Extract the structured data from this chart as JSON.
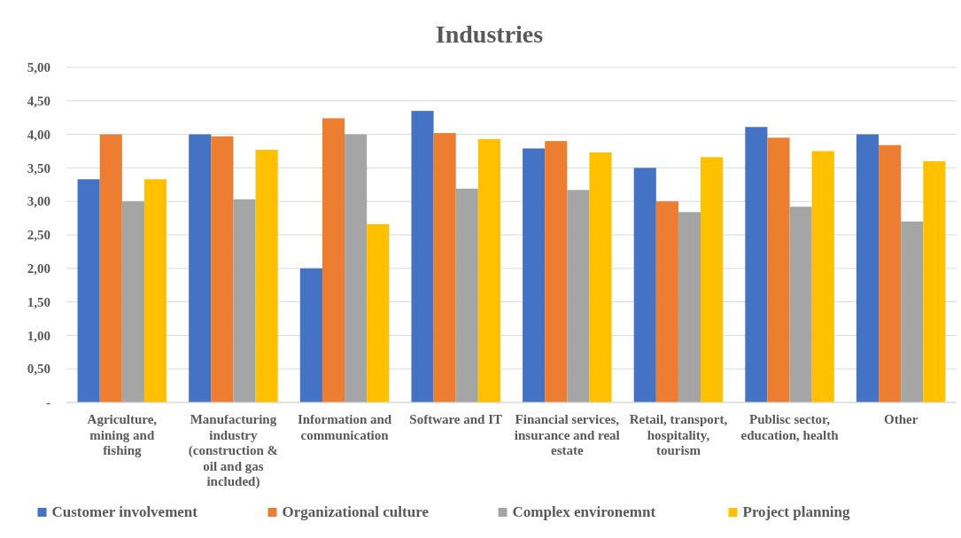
{
  "chart_data": {
    "type": "bar",
    "title": "Industries",
    "categories": [
      "Agriculture, mining and fishing",
      "Manufacturing industry (construction & oil and gas included)",
      "Information and communication",
      "Software and IT",
      "Financial services, insurance and real estate",
      "Retail, transport, hospitality, tourism",
      "Publisc sector, education, health",
      "Other"
    ],
    "series": [
      {
        "name": "Customer involvement",
        "color": "#4472c4",
        "values": [
          3.33,
          4.0,
          2.0,
          4.35,
          3.79,
          3.5,
          4.11,
          4.0
        ]
      },
      {
        "name": "Organizational culture",
        "color": "#ed7d31",
        "values": [
          4.0,
          3.97,
          4.24,
          4.02,
          3.9,
          3.0,
          3.95,
          3.84
        ]
      },
      {
        "name": "Complex environemnt",
        "color": "#a5a5a5",
        "values": [
          3.0,
          3.03,
          4.0,
          3.19,
          3.17,
          2.84,
          2.92,
          2.7
        ]
      },
      {
        "name": "Project planning",
        "color": "#ffc000",
        "values": [
          3.33,
          3.77,
          2.66,
          3.93,
          3.73,
          3.66,
          3.75,
          3.6
        ]
      }
    ],
    "ylim": [
      0,
      5
    ],
    "yticks": [
      {
        "value": 0,
        "label": "-"
      },
      {
        "value": 0.5,
        "label": "0,50"
      },
      {
        "value": 1,
        "label": "1,00"
      },
      {
        "value": 1.5,
        "label": "1,50"
      },
      {
        "value": 2,
        "label": "2,00"
      },
      {
        "value": 2.5,
        "label": "2,50"
      },
      {
        "value": 3,
        "label": "3,00"
      },
      {
        "value": 3.5,
        "label": "3,50"
      },
      {
        "value": 4,
        "label": "4,00"
      },
      {
        "value": 4.5,
        "label": "4,50"
      },
      {
        "value": 5,
        "label": "5,00"
      }
    ],
    "grid": "y",
    "legend": "bottom"
  }
}
